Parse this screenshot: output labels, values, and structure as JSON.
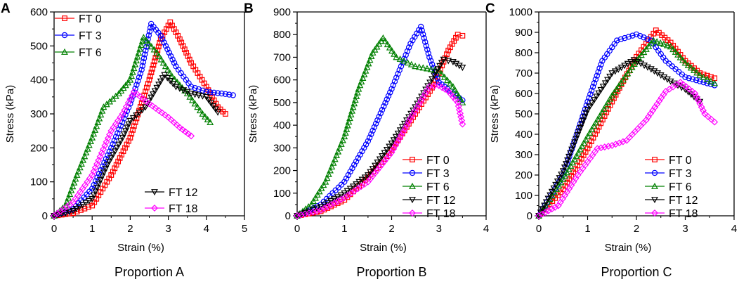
{
  "marker_shapes": {
    "FT 0": "square",
    "FT 3": "circle",
    "FT 6": "triangle-up",
    "FT 12": "triangle-down",
    "FT 18": "diamond"
  },
  "chart_data": [
    {
      "type": "scatter",
      "panel_letter": "A",
      "title": "Proportion A",
      "xlabel": "Strain (%)",
      "ylabel": "Stress (kPa)",
      "xlim": [
        0,
        5
      ],
      "ylim": [
        0,
        600
      ],
      "xticks": [
        0,
        1,
        2,
        3,
        4,
        5
      ],
      "yticks": [
        0,
        100,
        200,
        300,
        400,
        500,
        600
      ],
      "legend_groups": [
        [
          "FT 0",
          "FT 3",
          "FT 6"
        ],
        [
          "FT 12",
          "FT 18"
        ]
      ],
      "series": [
        {
          "name": "FT 0",
          "color": "#ff0000",
          "points": [
            [
              0,
              0
            ],
            [
              0.5,
              8
            ],
            [
              1,
              30
            ],
            [
              1.5,
              120
            ],
            [
              2,
              230
            ],
            [
              2.5,
              400
            ],
            [
              2.8,
              520
            ],
            [
              3.05,
              570
            ],
            [
              3.3,
              520
            ],
            [
              3.6,
              450
            ],
            [
              4,
              380
            ],
            [
              4.3,
              320
            ],
            [
              4.5,
              300
            ]
          ]
        },
        {
          "name": "FT 3",
          "color": "#0000ff",
          "points": [
            [
              0,
              0
            ],
            [
              0.5,
              20
            ],
            [
              1,
              80
            ],
            [
              1.5,
              200
            ],
            [
              2,
              330
            ],
            [
              2.3,
              430
            ],
            [
              2.55,
              565
            ],
            [
              2.8,
              530
            ],
            [
              3.2,
              440
            ],
            [
              3.6,
              380
            ],
            [
              4,
              365
            ],
            [
              4.4,
              360
            ],
            [
              4.7,
              355
            ]
          ]
        },
        {
          "name": "FT 6",
          "color": "#008000",
          "points": [
            [
              0,
              0
            ],
            [
              0.3,
              30
            ],
            [
              0.6,
              120
            ],
            [
              1,
              230
            ],
            [
              1.3,
              320
            ],
            [
              1.7,
              360
            ],
            [
              2,
              400
            ],
            [
              2.35,
              525
            ],
            [
              2.7,
              480
            ],
            [
              3.1,
              410
            ],
            [
              3.5,
              360
            ],
            [
              3.9,
              300
            ],
            [
              4.1,
              275
            ]
          ]
        },
        {
          "name": "FT 12",
          "color": "#000000",
          "points": [
            [
              0,
              0
            ],
            [
              0.5,
              15
            ],
            [
              1,
              50
            ],
            [
              1.4,
              150
            ],
            [
              1.8,
              230
            ],
            [
              2,
              280
            ],
            [
              2.4,
              320
            ],
            [
              2.9,
              415
            ],
            [
              3.2,
              380
            ],
            [
              3.6,
              360
            ],
            [
              4,
              350
            ],
            [
              4.3,
              305
            ]
          ]
        },
        {
          "name": "FT 18",
          "color": "#ff00ff",
          "points": [
            [
              0,
              0
            ],
            [
              0.5,
              40
            ],
            [
              1,
              120
            ],
            [
              1.5,
              250
            ],
            [
              1.8,
              300
            ],
            [
              2.1,
              365
            ],
            [
              2.5,
              330
            ],
            [
              3,
              290
            ],
            [
              3.3,
              260
            ],
            [
              3.6,
              235
            ]
          ]
        }
      ]
    },
    {
      "type": "scatter",
      "panel_letter": "B",
      "title": "Proportion B",
      "xlabel": "Strain (%)",
      "ylabel": "Stress (kPa)",
      "xlim": [
        0,
        4
      ],
      "ylim": [
        0,
        900
      ],
      "xticks": [
        0,
        1,
        2,
        3,
        4
      ],
      "yticks": [
        0,
        100,
        200,
        300,
        400,
        500,
        600,
        700,
        800,
        900
      ],
      "legend_groups": [
        [
          "FT 0",
          "FT 3",
          "FT 6",
          "FT 12",
          "FT 18"
        ]
      ],
      "series": [
        {
          "name": "FT 0",
          "color": "#ff0000",
          "points": [
            [
              0,
              0
            ],
            [
              0.5,
              20
            ],
            [
              1,
              70
            ],
            [
              1.5,
              170
            ],
            [
              2,
              290
            ],
            [
              2.5,
              450
            ],
            [
              2.9,
              580
            ],
            [
              3.2,
              730
            ],
            [
              3.4,
              800
            ],
            [
              3.5,
              795
            ]
          ]
        },
        {
          "name": "FT 3",
          "color": "#0000ff",
          "points": [
            [
              0,
              0
            ],
            [
              0.5,
              50
            ],
            [
              1,
              150
            ],
            [
              1.5,
              330
            ],
            [
              2,
              560
            ],
            [
              2.4,
              760
            ],
            [
              2.62,
              835
            ],
            [
              2.8,
              700
            ],
            [
              3,
              590
            ],
            [
              3.3,
              540
            ],
            [
              3.5,
              510
            ]
          ]
        },
        {
          "name": "FT 6",
          "color": "#008000",
          "points": [
            [
              0,
              0
            ],
            [
              0.3,
              50
            ],
            [
              0.6,
              150
            ],
            [
              1,
              350
            ],
            [
              1.3,
              560
            ],
            [
              1.6,
              720
            ],
            [
              1.82,
              785
            ],
            [
              2.1,
              700
            ],
            [
              2.5,
              660
            ],
            [
              3,
              640
            ],
            [
              3.3,
              570
            ],
            [
              3.5,
              500
            ]
          ]
        },
        {
          "name": "FT 12",
          "color": "#000000",
          "points": [
            [
              0,
              0
            ],
            [
              0.5,
              40
            ],
            [
              1,
              100
            ],
            [
              1.5,
              180
            ],
            [
              2,
              320
            ],
            [
              2.5,
              480
            ],
            [
              2.9,
              620
            ],
            [
              3.1,
              690
            ],
            [
              3.3,
              680
            ],
            [
              3.5,
              655
            ]
          ]
        },
        {
          "name": "FT 18",
          "color": "#ff00ff",
          "points": [
            [
              0,
              0
            ],
            [
              0.5,
              25
            ],
            [
              1,
              80
            ],
            [
              1.5,
              150
            ],
            [
              2,
              280
            ],
            [
              2.4,
              430
            ],
            [
              2.8,
              570
            ],
            [
              3,
              575
            ],
            [
              3.2,
              550
            ],
            [
              3.4,
              500
            ],
            [
              3.5,
              405
            ]
          ]
        }
      ]
    },
    {
      "type": "scatter",
      "panel_letter": "C",
      "title": "Proportion C",
      "xlabel": "Strain (%)",
      "ylabel": "Stress (kPa)",
      "xlim": [
        0,
        4
      ],
      "ylim": [
        0,
        1000
      ],
      "xticks": [
        0,
        1,
        2,
        3,
        4
      ],
      "yticks": [
        0,
        100,
        200,
        300,
        400,
        500,
        600,
        700,
        800,
        900,
        1000
      ],
      "legend_groups": [
        [
          "FT 0",
          "FT 3",
          "FT 6",
          "FT 12",
          "FT 18"
        ]
      ],
      "series": [
        {
          "name": "FT 0",
          "color": "#ff0000",
          "points": [
            [
              0,
              0
            ],
            [
              0.5,
              130
            ],
            [
              1,
              330
            ],
            [
              1.5,
              560
            ],
            [
              2,
              780
            ],
            [
              2.4,
              910
            ],
            [
              2.7,
              850
            ],
            [
              3,
              760
            ],
            [
              3.3,
              700
            ],
            [
              3.6,
              675
            ]
          ]
        },
        {
          "name": "FT 3",
          "color": "#0000ff",
          "points": [
            [
              0,
              0
            ],
            [
              0.5,
              200
            ],
            [
              1,
              560
            ],
            [
              1.3,
              760
            ],
            [
              1.6,
              860
            ],
            [
              2,
              890
            ],
            [
              2.3,
              860
            ],
            [
              2.6,
              760
            ],
            [
              3,
              680
            ],
            [
              3.3,
              660
            ],
            [
              3.6,
              640
            ]
          ]
        },
        {
          "name": "FT 6",
          "color": "#008000",
          "points": [
            [
              0,
              0
            ],
            [
              0.5,
              180
            ],
            [
              1,
              390
            ],
            [
              1.5,
              590
            ],
            [
              2,
              760
            ],
            [
              2.35,
              860
            ],
            [
              2.7,
              830
            ],
            [
              3,
              750
            ],
            [
              3.3,
              690
            ],
            [
              3.6,
              650
            ]
          ]
        },
        {
          "name": "FT 12",
          "color": "#000000",
          "points": [
            [
              0,
              0
            ],
            [
              0.5,
              220
            ],
            [
              1,
              520
            ],
            [
              1.5,
              700
            ],
            [
              1.95,
              765
            ],
            [
              2.3,
              720
            ],
            [
              2.7,
              660
            ],
            [
              3,
              620
            ],
            [
              3.3,
              560
            ]
          ]
        },
        {
          "name": "FT 18",
          "color": "#ff00ff",
          "points": [
            [
              0,
              0
            ],
            [
              0.4,
              50
            ],
            [
              0.8,
              200
            ],
            [
              1.2,
              330
            ],
            [
              1.5,
              345
            ],
            [
              1.8,
              370
            ],
            [
              2.2,
              470
            ],
            [
              2.6,
              610
            ],
            [
              2.9,
              655
            ],
            [
              3.2,
              600
            ],
            [
              3.4,
              500
            ],
            [
              3.6,
              460
            ]
          ]
        }
      ]
    }
  ]
}
